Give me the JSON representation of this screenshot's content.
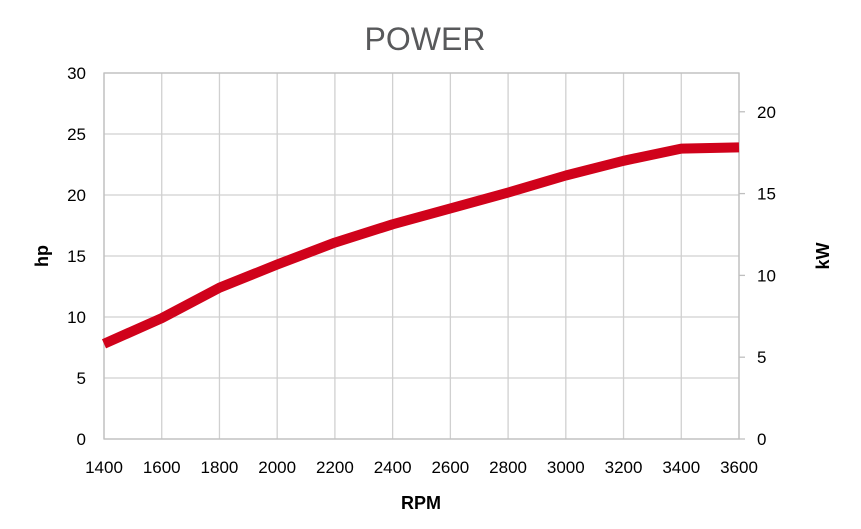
{
  "chart_data": {
    "type": "line",
    "title": "POWER",
    "xlabel": "RPM",
    "ylabel": "hp",
    "y2label": "kW",
    "xlim": [
      1400,
      3600
    ],
    "ylim": [
      0,
      30
    ],
    "y2lim": [
      0,
      22.37
    ],
    "x_ticks": [
      "1400",
      "1600",
      "1800",
      "2000",
      "2200",
      "2400",
      "2600",
      "2800",
      "3000",
      "3200",
      "3400",
      "3600"
    ],
    "y_ticks": [
      "0",
      "5",
      "10",
      "15",
      "20",
      "25",
      "30"
    ],
    "y2_ticks": [
      "0",
      "5",
      "10",
      "15",
      "20"
    ],
    "grid": true,
    "series": [
      {
        "color": "#d0021b",
        "x": [
          1400,
          1600,
          1800,
          2000,
          2200,
          2400,
          2600,
          2800,
          3000,
          3200,
          3400,
          3600
        ],
        "y": [
          7.8,
          9.9,
          12.4,
          14.3,
          16.1,
          17.6,
          18.9,
          20.2,
          21.6,
          22.8,
          23.8,
          23.9
        ]
      }
    ]
  }
}
